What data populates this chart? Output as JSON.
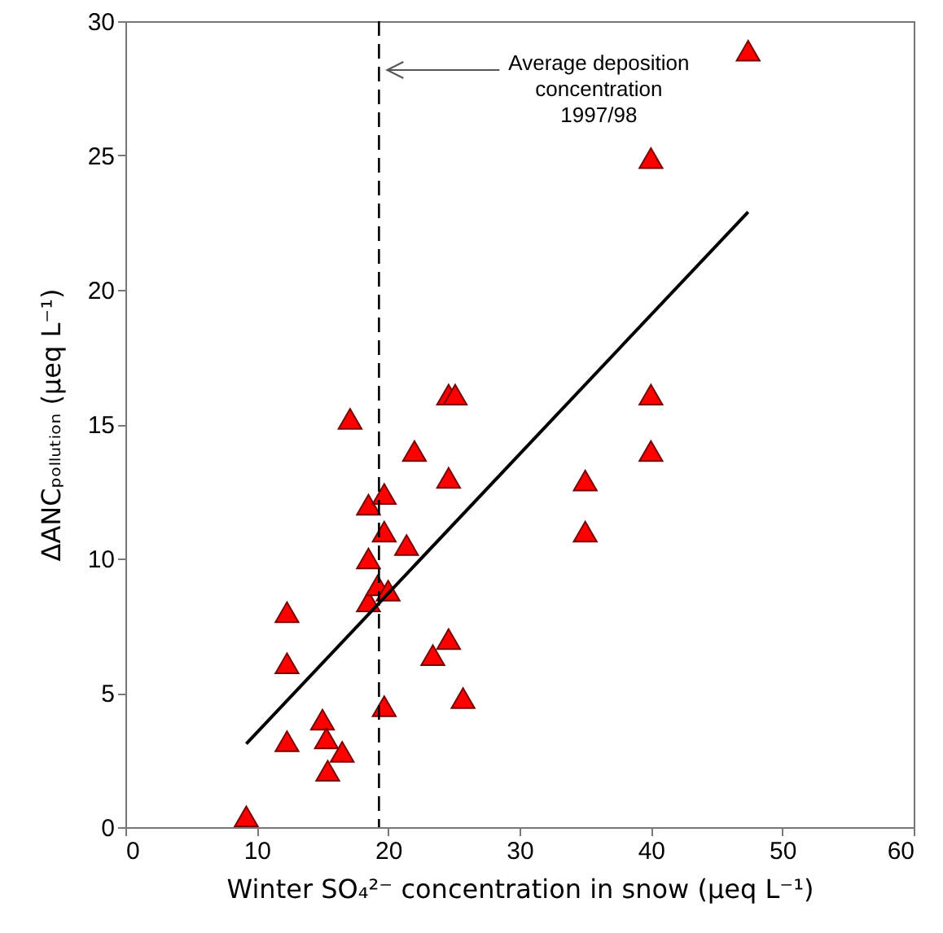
{
  "chart_data": {
    "type": "scatter",
    "xlabel": "Winter SO₄²⁻ concentration in snow (μeq L⁻¹)",
    "ylabel": "ΔANCₚₒₗₗᵤₜᵢₒₙ (μeq L⁻¹)",
    "xlim": [
      0,
      60
    ],
    "xticks": [
      0,
      10,
      20,
      30,
      40,
      50,
      60
    ],
    "ylim": [
      0,
      30
    ],
    "yticks": [
      0,
      5,
      10,
      15,
      20,
      25,
      30
    ],
    "grid": false,
    "series": [
      {
        "marker": "triangle",
        "color": "#ff0000",
        "x": [
          9.2,
          12.3,
          12.3,
          12.3,
          15.0,
          15.3,
          15.4,
          16.5,
          17.1,
          18.5,
          18.5,
          18.5,
          19.2,
          19.7,
          19.7,
          19.7,
          20.0,
          21.4,
          22.0,
          23.4,
          24.6,
          24.6,
          24.6,
          25.1,
          25.7,
          35.0,
          35.0,
          40.0,
          40.0,
          40.0,
          47.4
        ],
        "values": [
          0.4,
          8.0,
          6.1,
          3.2,
          4.0,
          3.3,
          2.1,
          2.8,
          15.2,
          12.0,
          10.0,
          8.4,
          9.0,
          12.4,
          11.0,
          4.5,
          8.8,
          10.5,
          14.0,
          6.4,
          13.0,
          7.0,
          16.1,
          16.1,
          4.8,
          12.9,
          11.0,
          24.9,
          16.1,
          14.0,
          28.9
        ]
      },
      {
        "type": "line",
        "color": "#000000",
        "x": [
          9.2,
          47.4
        ],
        "values": [
          3.1,
          22.9
        ]
      }
    ],
    "ref_lines": [
      {
        "axis": "x",
        "value": 19.3,
        "label": "Average deposition\nconcentration\n1997/98",
        "color": "#000000",
        "line_style": "dashed"
      }
    ]
  }
}
